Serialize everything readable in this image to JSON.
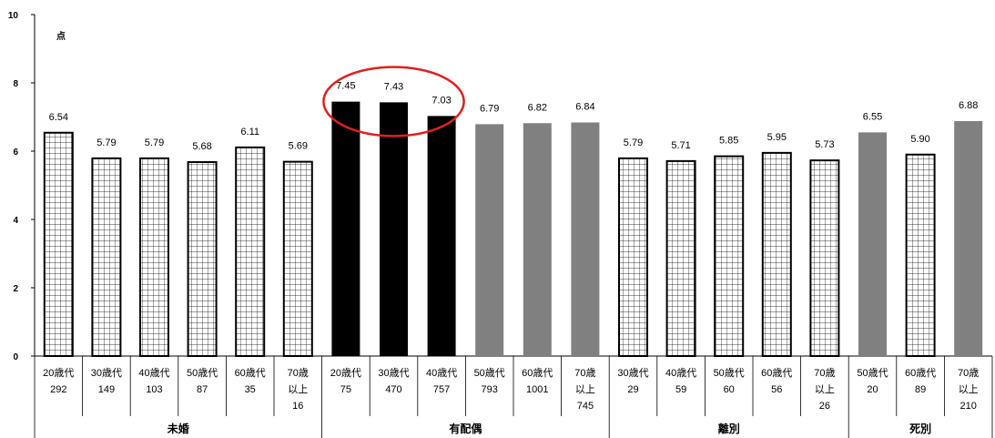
{
  "chart_data": {
    "type": "bar",
    "unit": "点",
    "ylim": [
      0,
      10
    ],
    "yticks": [
      0,
      2,
      4,
      6,
      8,
      10
    ],
    "grid": false,
    "groups": [
      {
        "name": "未婚",
        "style": "grid",
        "bars": [
          {
            "label": [
              "20歳代",
              "292"
            ],
            "value": 6.54,
            "value_label": "6.54"
          },
          {
            "label": [
              "30歳代",
              "149"
            ],
            "value": 5.79,
            "value_label": "5.79"
          },
          {
            "label": [
              "40歳代",
              "103"
            ],
            "value": 5.79,
            "value_label": "5.79"
          },
          {
            "label": [
              "50歳代",
              "87"
            ],
            "value": 5.68,
            "value_label": "5.68"
          },
          {
            "label": [
              "60歳代",
              "35"
            ],
            "value": 6.11,
            "value_label": "6.11"
          },
          {
            "label": [
              "70歳",
              "以上",
              "16"
            ],
            "value": 5.69,
            "value_label": "5.69"
          }
        ]
      },
      {
        "name": "有配偶",
        "style": "mixed",
        "bars": [
          {
            "label": [
              "20歳代",
              "75"
            ],
            "value": 7.45,
            "value_label": "7.45",
            "fill": "#000000"
          },
          {
            "label": [
              "30歳代",
              "470"
            ],
            "value": 7.43,
            "value_label": "7.43",
            "fill": "#000000"
          },
          {
            "label": [
              "40歳代",
              "757"
            ],
            "value": 7.03,
            "value_label": "7.03",
            "fill": "#000000"
          },
          {
            "label": [
              "50歳代",
              "793"
            ],
            "value": 6.79,
            "value_label": "6.79",
            "fill": "#808080"
          },
          {
            "label": [
              "60歳代",
              "1001"
            ],
            "value": 6.82,
            "value_label": "6.82",
            "fill": "#808080"
          },
          {
            "label": [
              "70歳",
              "以上",
              "745"
            ],
            "value": 6.84,
            "value_label": "6.84",
            "fill": "#808080"
          }
        ]
      },
      {
        "name": "離別",
        "style": "grid",
        "bars": [
          {
            "label": [
              "30歳代",
              "29"
            ],
            "value": 5.79,
            "value_label": "5.79"
          },
          {
            "label": [
              "40歳代",
              "59"
            ],
            "value": 5.71,
            "value_label": "5.71"
          },
          {
            "label": [
              "50歳代",
              "60"
            ],
            "value": 5.85,
            "value_label": "5.85"
          },
          {
            "label": [
              "60歳代",
              "56"
            ],
            "value": 5.95,
            "value_label": "5.95"
          },
          {
            "label": [
              "70歳",
              "以上",
              "26"
            ],
            "value": 5.73,
            "value_label": "5.73"
          }
        ]
      },
      {
        "name": "死別",
        "style": "mixed",
        "bars": [
          {
            "label": [
              "50歳代",
              "20"
            ],
            "value": 6.55,
            "value_label": "6.55",
            "fill": "#808080"
          },
          {
            "label": [
              "60歳代",
              "89"
            ],
            "value": 5.9,
            "value_label": "5.90",
            "fill": "grid"
          },
          {
            "label": [
              "70歳",
              "以上",
              "210"
            ],
            "value": 6.88,
            "value_label": "6.88",
            "fill": "#808080"
          }
        ]
      }
    ],
    "highlight": {
      "group": 1,
      "bars": [
        0,
        1,
        2
      ],
      "shape": "ellipse",
      "color": "#e02020"
    }
  }
}
